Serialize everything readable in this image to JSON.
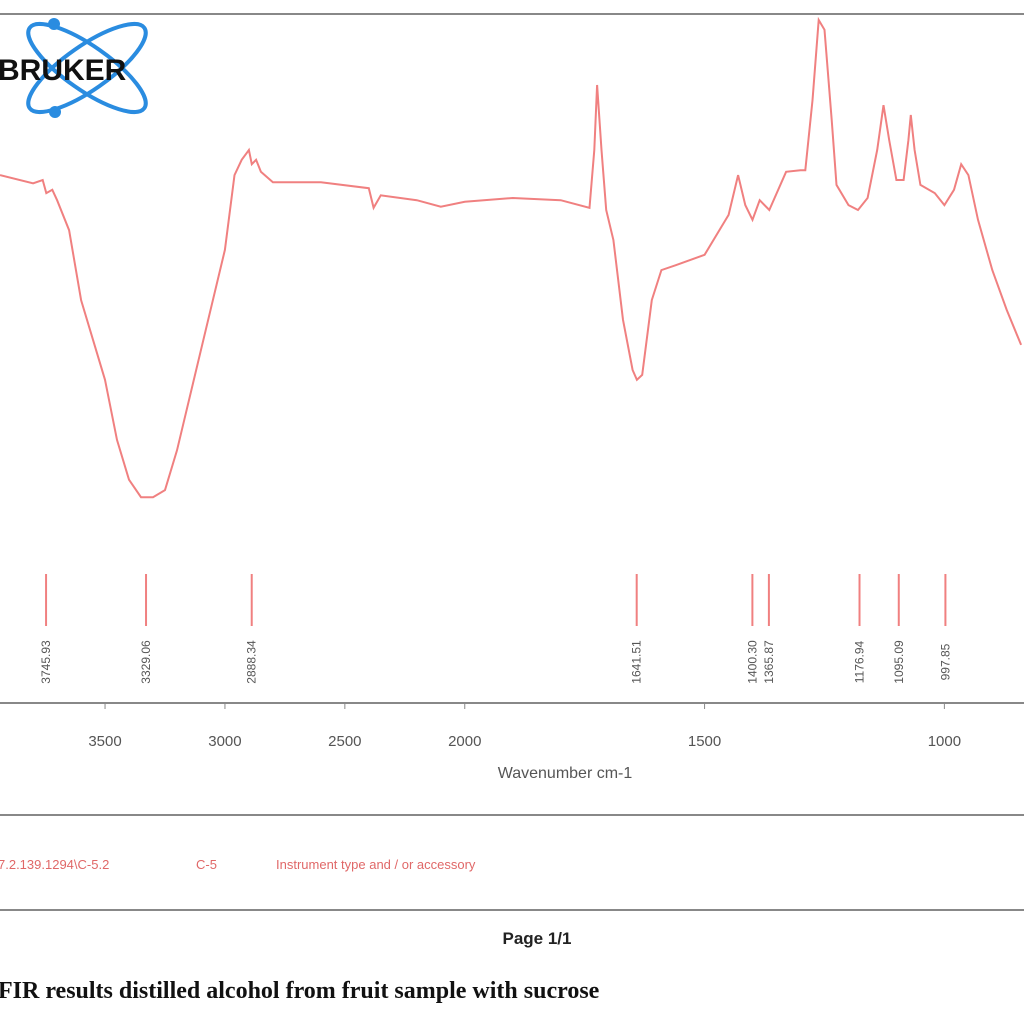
{
  "chart_data": {
    "type": "line",
    "logo": "BRUKER",
    "xlabel": "Wavenumber cm-1",
    "xlim": [
      3938,
      834
    ],
    "xscale": {
      "break": 2000,
      "factor": 2
    },
    "xticks": [
      3500,
      3000,
      2500,
      2000,
      1500,
      1000
    ],
    "ylim": [
      0,
      100
    ],
    "x": [
      3938,
      3800,
      3760,
      3745,
      3720,
      3700,
      3650,
      3600,
      3500,
      3450,
      3400,
      3350,
      3300,
      3250,
      3200,
      3100,
      3000,
      2960,
      2930,
      2900,
      2888,
      2870,
      2850,
      2800,
      2600,
      2400,
      2380,
      2350,
      2200,
      2100,
      2000,
      1900,
      1800,
      1740,
      1730,
      1724,
      1715,
      1705,
      1690,
      1670,
      1650,
      1641,
      1630,
      1610,
      1590,
      1560,
      1500,
      1450,
      1430,
      1415,
      1400,
      1385,
      1365,
      1330,
      1300,
      1290,
      1275,
      1262,
      1250,
      1235,
      1225,
      1200,
      1180,
      1160,
      1140,
      1127,
      1115,
      1100,
      1085,
      1075,
      1070,
      1062,
      1050,
      1020,
      1000,
      980,
      965,
      950,
      930,
      900,
      870,
      840
    ],
    "series": [
      {
        "color": "#f08080",
        "values": [
          70.5,
          69.0,
          69.6,
          67.2,
          67.8,
          65.9,
          60.4,
          47.6,
          33.0,
          22.0,
          14.7,
          11.5,
          11.5,
          12.8,
          20.1,
          38.5,
          56.8,
          70.5,
          73.3,
          75.1,
          72.5,
          73.3,
          71.1,
          69.2,
          69.2,
          68.1,
          64.5,
          66.8,
          65.9,
          64.7,
          65.6,
          66.3,
          65.9,
          64.5,
          75.1,
          87.0,
          75.1,
          64.1,
          58.6,
          44.0,
          34.8,
          33.0,
          33.9,
          47.6,
          53.1,
          54.0,
          55.9,
          63.2,
          70.5,
          65.0,
          62.3,
          65.9,
          64.1,
          71.1,
          71.4,
          71.4,
          84.2,
          98.9,
          97.1,
          80.6,
          68.7,
          65.0,
          64.1,
          66.3,
          75.1,
          83.3,
          76.9,
          69.6,
          69.6,
          76.9,
          81.5,
          75.1,
          68.7,
          67.2,
          65.0,
          67.8,
          72.5,
          70.5,
          62.3,
          53.1,
          45.8,
          39.4
        ]
      }
    ],
    "peaks": [
      3745.93,
      3329.06,
      2888.34,
      1641.51,
      1400.3,
      1365.87,
      1176.94,
      1095.09,
      997.85
    ],
    "peak_labels": [
      "3745.93",
      "3329.06",
      "2888.34",
      "1641.51",
      "1400.30",
      "1365.87",
      "1176.94",
      "1095.09",
      "997.85"
    ],
    "footer": [
      "7.2.139.1294\\C-5.2",
      "C-5",
      "Instrument type and / or accessory"
    ],
    "page": "Page 1/1",
    "caption": "FIR results distilled alcohol from fruit sample with sucrose"
  }
}
